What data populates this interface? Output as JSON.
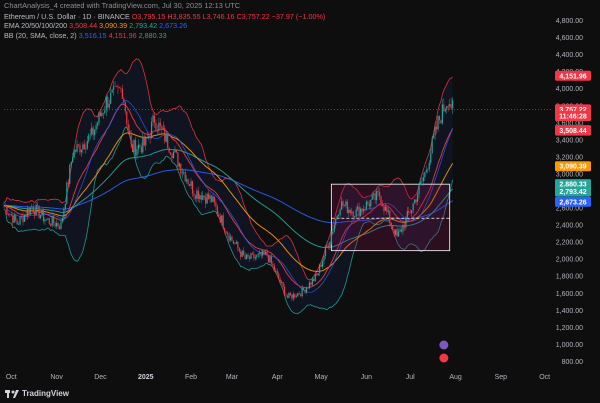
{
  "header": {
    "credit": "ChartAnalysis_4 created with TradingView.com, Jul 30, 2025 12:13 UTC",
    "symbol": "Ethereum / U.S. Dollar · 1D · BINANCE",
    "open": "O3,795.15",
    "high": "H3,835.55",
    "low": "L3,746.16",
    "close": "C3,757.22",
    "change": "−37.97 (−1.00%)",
    "ema_label": "EMA 20/50/100/200",
    "ema_values": [
      "3,508.44",
      "3,090.39",
      "2,793.42",
      "2,673.26"
    ],
    "bb_label": "BB (20, SMA, close, 2)",
    "bb_values": [
      "3,516.15",
      "4,151.96",
      "2,880.33"
    ]
  },
  "footer": {
    "brand": "TradingView"
  },
  "colors": {
    "background": "#0e0e0e",
    "up": "#26a69a",
    "down": "#f23645",
    "ema20": "#f23645",
    "ema50": "#ff9800",
    "ema100": "#26a69a",
    "ema200": "#2962ff",
    "bb_band": "#f23645",
    "bb_basis": "#2962ff",
    "bb_fill": "#2962ff"
  },
  "chart_data": {
    "type": "candlestick",
    "title": "Ethereum / U.S. Dollar · 1D · BINANCE",
    "x_ticks": [
      "Oct",
      "Nov",
      "Dec",
      "2025",
      "Feb",
      "Mar",
      "Apr",
      "May",
      "Jun",
      "Jul",
      "Aug",
      "Sep",
      "Oct"
    ],
    "y_ticks": [
      800,
      1000,
      1200,
      1400,
      1600,
      1800,
      2000,
      2200,
      2400,
      2600,
      2800,
      3000,
      3200,
      3400,
      3600,
      3800,
      4000,
      4200,
      4400,
      4600,
      4800
    ],
    "y_tick_labels": [
      "800.00",
      "1,000.00",
      "1,200.00",
      "1,400.00",
      "1,600.00",
      "1,800.00",
      "2,000.00",
      "2,200.00",
      "2,400.00",
      "2,600.00",
      "2,800.00",
      "3,000.00",
      "3,200.00",
      "3,400.00",
      "3,600.00",
      "3,800.00",
      "4,000.00",
      "4,200.00",
      "4,400.00",
      "4,600.00",
      "4,800.00"
    ],
    "ylim": [
      700,
      4900
    ],
    "price_path": [
      {
        "date": "2024-09-26",
        "value": 2630
      },
      {
        "date": "2024-10-05",
        "value": 2420
      },
      {
        "date": "2024-10-15",
        "value": 2620
      },
      {
        "date": "2024-10-25",
        "value": 2460
      },
      {
        "date": "2024-11-04",
        "value": 2400
      },
      {
        "date": "2024-11-12",
        "value": 3250
      },
      {
        "date": "2024-11-25",
        "value": 3450
      },
      {
        "date": "2024-12-05",
        "value": 3850
      },
      {
        "date": "2024-12-16",
        "value": 4000
      },
      {
        "date": "2024-12-22",
        "value": 3300
      },
      {
        "date": "2025-01-01",
        "value": 3350
      },
      {
        "date": "2025-01-07",
        "value": 3650
      },
      {
        "date": "2025-01-20",
        "value": 3250
      },
      {
        "date": "2025-02-03",
        "value": 2800
      },
      {
        "date": "2025-02-15",
        "value": 2700
      },
      {
        "date": "2025-02-28",
        "value": 2250
      },
      {
        "date": "2025-03-10",
        "value": 2000
      },
      {
        "date": "2025-03-25",
        "value": 2050
      },
      {
        "date": "2025-04-08",
        "value": 1550
      },
      {
        "date": "2025-04-18",
        "value": 1620
      },
      {
        "date": "2025-04-28",
        "value": 1800
      },
      {
        "date": "2025-05-08",
        "value": 2300
      },
      {
        "date": "2025-05-14",
        "value": 2650
      },
      {
        "date": "2025-05-25",
        "value": 2550
      },
      {
        "date": "2025-06-10",
        "value": 2750
      },
      {
        "date": "2025-06-22",
        "value": 2250
      },
      {
        "date": "2025-07-02",
        "value": 2600
      },
      {
        "date": "2025-07-11",
        "value": 3000
      },
      {
        "date": "2025-07-20",
        "value": 3600
      },
      {
        "date": "2025-07-27",
        "value": 3900
      },
      {
        "date": "2025-07-30",
        "value": 3757
      }
    ],
    "series": [
      {
        "name": "EMA 20",
        "last": 3508.44
      },
      {
        "name": "EMA 50",
        "last": 3090.39
      },
      {
        "name": "EMA 100",
        "last": 2793.42
      },
      {
        "name": "EMA 200",
        "last": 2673.26
      },
      {
        "name": "BB basis",
        "last": 3516.15
      },
      {
        "name": "BB upper",
        "last": 4151.96
      },
      {
        "name": "BB lower",
        "last": 2880.33
      }
    ],
    "consolidation_zone": {
      "from": "2025-05-08",
      "to": "2025-07-28",
      "top": 2880,
      "bottom": 2100,
      "midline": 2480
    },
    "price_labels": [
      {
        "text": "4,151.96",
        "value": 4151.96,
        "color": "#f23645"
      },
      {
        "text": "3,757.22",
        "value": 3757.22,
        "color": "#f23645"
      },
      {
        "text": "11:46:28",
        "value": 3680,
        "color": "#f23645"
      },
      {
        "text": "3,516.15",
        "value": 3516.15,
        "color": "#2962ff"
      },
      {
        "text": "3,508.44",
        "value": 3508.44,
        "color": "#f23645"
      },
      {
        "text": "3,090.39",
        "value": 3090.39,
        "color": "#ff9800"
      },
      {
        "text": "2,880.33",
        "value": 2880.33,
        "color": "#26a69a"
      },
      {
        "text": "2,793.42",
        "value": 2793.42,
        "color": "#26a69a"
      },
      {
        "text": "2,673.26",
        "value": 2673.26,
        "color": "#2962ff"
      }
    ]
  }
}
